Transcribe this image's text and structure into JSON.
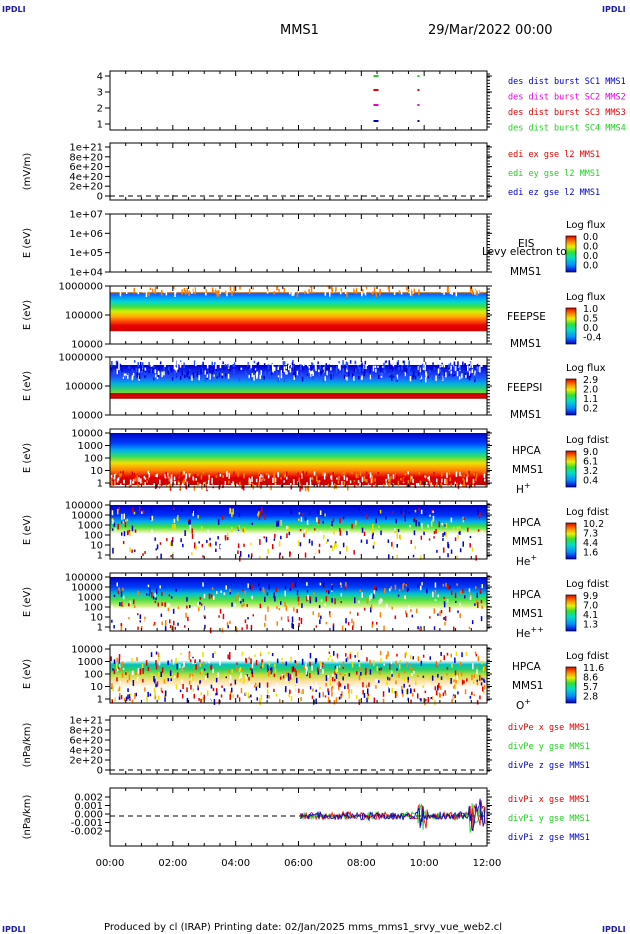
{
  "corner_label": "IPDLI",
  "header": {
    "title": "MMS1",
    "date": "29/Mar/2022 00:00"
  },
  "footer": "Produced by cl (IRAP)   Printing date: 02/Jan/2025   mms_mms1_srvy_vue_web2.cl",
  "colors": {
    "blue": "#0000c8",
    "magenta": "#e000e0",
    "red": "#e00000",
    "green": "#20d020",
    "corner": "#1a1aa6"
  },
  "x_axis": {
    "ticks": [
      "00:00",
      "02:00",
      "04:00",
      "06:00",
      "08:00",
      "10:00",
      "12:00"
    ]
  },
  "chart_data": [
    {
      "type": "scatter",
      "name": "burst",
      "y_ticks": [
        "4",
        "3",
        "2",
        "1"
      ],
      "legend": [
        {
          "text": "des dist burst SC1 MMS1",
          "color": "#0000c8"
        },
        {
          "text": "des dist burst SC2 MMS2",
          "color": "#e000e0"
        },
        {
          "text": "des dist burst SC3 MMS3",
          "color": "#e00000"
        },
        {
          "text": "des dist burst SC4 MMS4",
          "color": "#20d020"
        }
      ],
      "burst_times_hours": [
        8.45,
        9.85
      ]
    },
    {
      "type": "line",
      "name": "edi",
      "ylabel": "(mV/m)",
      "y_ticks": [
        "1e+21",
        "8e+20",
        "6e+20",
        "4e+20",
        "2e+20",
        "0"
      ],
      "legend": [
        {
          "text": "edi ex gse l2 MMS1",
          "color": "#e00000"
        },
        {
          "text": "edi ey gse l2 MMS1",
          "color": "#20d020"
        },
        {
          "text": "edi ez gse l2 MMS1",
          "color": "#0000c8"
        }
      ]
    },
    {
      "type": "heatmap",
      "name": "eis",
      "ylabel": "E (eV)",
      "y_ticks": [
        "1e+07",
        "1e+06",
        "1e+05",
        "1e+04"
      ],
      "right_labels": [
        "EIS",
        "MMS1"
      ],
      "overlay_text": "Levy electron to",
      "colorbar": {
        "title": "Log flux",
        "values": [
          "0.0",
          "0.0",
          "0.0",
          "0.0"
        ]
      }
    },
    {
      "type": "heatmap",
      "name": "feepse",
      "ylabel": "E (eV)",
      "y_ticks": [
        "1000000",
        "100000",
        "10000"
      ],
      "right_labels": [
        "FEEPSE",
        "MMS1"
      ],
      "colorbar": {
        "title": "Log flux",
        "values": [
          "1.0",
          "0.5",
          "0.0",
          "-0.4"
        ]
      }
    },
    {
      "type": "heatmap",
      "name": "feepsi",
      "ylabel": "E (eV)",
      "y_ticks": [
        "1000000",
        "100000",
        "10000"
      ],
      "right_labels": [
        "FEEPSI",
        "MMS1"
      ],
      "colorbar": {
        "title": "Log flux",
        "values": [
          "2.9",
          "2.0",
          "1.1",
          "0.2"
        ]
      }
    },
    {
      "type": "heatmap",
      "name": "hpca-h",
      "ylabel": "E (eV)",
      "y_ticks": [
        "10000",
        "1000",
        "100",
        "10",
        "1"
      ],
      "right_labels": [
        "HPCA",
        "MMS1",
        "H+"
      ],
      "colorbar": {
        "title": "Log fdist",
        "values": [
          "9.0",
          "6.1",
          "3.2",
          "0.4"
        ]
      }
    },
    {
      "type": "heatmap",
      "name": "hpca-he",
      "ylabel": "E (eV)",
      "y_ticks": [
        "100000",
        "10000",
        "1000",
        "100",
        "10",
        "1"
      ],
      "right_labels": [
        "HPCA",
        "MMS1",
        "He+"
      ],
      "colorbar": {
        "title": "Log fdist",
        "values": [
          "10.2",
          "7.3",
          "4.4",
          "1.6"
        ]
      }
    },
    {
      "type": "heatmap",
      "name": "hpca-hepp",
      "ylabel": "E (eV)",
      "y_ticks": [
        "100000",
        "10000",
        "1000",
        "100",
        "10",
        "1"
      ],
      "right_labels": [
        "HPCA",
        "MMS1",
        "He++"
      ],
      "colorbar": {
        "title": "Log fdist",
        "values": [
          "9.9",
          "7.0",
          "4.1",
          "1.3"
        ]
      }
    },
    {
      "type": "heatmap",
      "name": "hpca-o",
      "ylabel": "E (eV)",
      "y_ticks": [
        "10000",
        "1000",
        "100",
        "10",
        "1"
      ],
      "right_labels": [
        "HPCA",
        "MMS1",
        "O+"
      ],
      "colorbar": {
        "title": "Log fdist",
        "values": [
          "11.6",
          "8.6",
          "5.7",
          "2.8"
        ]
      }
    },
    {
      "type": "line",
      "name": "divpe",
      "ylabel": "(nPa/km)",
      "y_ticks": [
        "1e+21",
        "8e+20",
        "6e+20",
        "4e+20",
        "2e+20",
        "0"
      ],
      "legend": [
        {
          "text": "divPe x gse MMS1",
          "color": "#e00000"
        },
        {
          "text": "divPe y gse MMS1",
          "color": "#20d020"
        },
        {
          "text": "divPe z gse MMS1",
          "color": "#0000c8"
        }
      ]
    },
    {
      "type": "line",
      "name": "divpi",
      "ylabel": "(nPa/km)",
      "y_ticks": [
        "0.002",
        "0.001",
        "0.000",
        "-0.001",
        "-0.002"
      ],
      "ylim": [
        -0.0028,
        0.0028
      ],
      "data_start_hour": 6.05,
      "legend": [
        {
          "text": "divPi x gse MMS1",
          "color": "#e00000"
        },
        {
          "text": "divPi y gse MMS1",
          "color": "#20d020"
        },
        {
          "text": "divPi z gse MMS1",
          "color": "#0000c8"
        }
      ]
    }
  ]
}
